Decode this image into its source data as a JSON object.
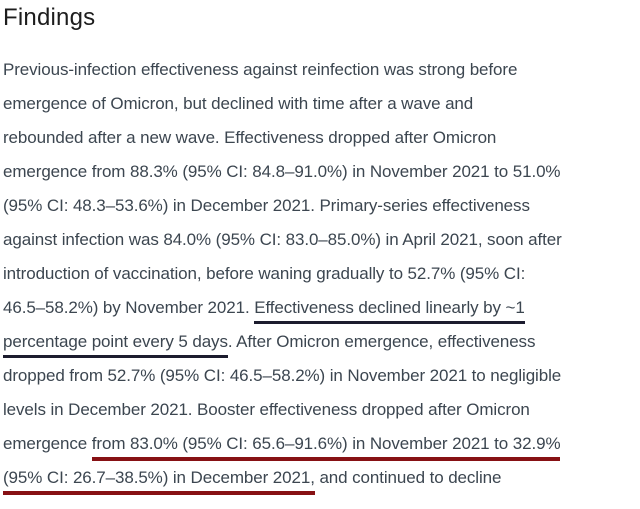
{
  "heading": {
    "text": "Findings"
  },
  "colors": {
    "heading_text": "#1d1d1d",
    "body_text": "#3c4650",
    "navy_underline": "#1c1c2e",
    "red_underline": "#871114",
    "background": "#ffffff"
  },
  "annotations": {
    "navy_underlined_text": "Effectiveness declined linearly by ~1 percentage point every 5 days",
    "red_underlined_text": "from 83.0% (95% CI: 65.6–91.6%) in November 2021 to 32.9% (95% CI: 26.7–38.5%) in December 2021,"
  },
  "paragraph": {
    "lines": [
      {
        "segments": [
          {
            "style": "plain",
            "text": "Previous-infection effectiveness against reinfection was strong before"
          }
        ]
      },
      {
        "segments": [
          {
            "style": "plain",
            "text": "emergence of Omicron, but declined with time after a wave and"
          }
        ]
      },
      {
        "segments": [
          {
            "style": "plain",
            "text": "rebounded after a new wave. Effectiveness dropped after Omicron"
          }
        ]
      },
      {
        "segments": [
          {
            "style": "plain",
            "text": "emergence from 88.3% (95% CI: 84.8–91.0%) in November 2021 to 51.0%"
          }
        ]
      },
      {
        "segments": [
          {
            "style": "plain",
            "text": "(95% CI: 48.3–53.6%) in December 2021. Primary-series effectiveness"
          }
        ]
      },
      {
        "segments": [
          {
            "style": "plain",
            "text": "against infection was 84.0% (95% CI: 83.0–85.0%) in April 2021, soon after"
          }
        ]
      },
      {
        "segments": [
          {
            "style": "plain",
            "text": "introduction of vaccination, before waning gradually to 52.7% (95% CI:"
          }
        ]
      },
      {
        "segments": [
          {
            "style": "plain",
            "text": "46.5–58.2%) by November 2021. "
          },
          {
            "style": "navy",
            "text": "Effectiveness declined linearly by ~1"
          }
        ]
      },
      {
        "segments": [
          {
            "style": "navy",
            "text": "percentage point every 5 days"
          },
          {
            "style": "plain",
            "text": ". After Omicron emergence, effectiveness"
          }
        ]
      },
      {
        "segments": [
          {
            "style": "plain",
            "text": "dropped from 52.7% (95% CI: 46.5–58.2%) in November 2021 to negligible"
          }
        ]
      },
      {
        "segments": [
          {
            "style": "plain",
            "text": "levels in December 2021. Booster effectiveness dropped after Omicron"
          }
        ]
      },
      {
        "segments": [
          {
            "style": "plain",
            "text": "emergence "
          },
          {
            "style": "red",
            "text": "from 83.0% (95% CI: 65.6–91.6%) in November 2021 to 32.9%"
          }
        ]
      },
      {
        "segments": [
          {
            "style": "red",
            "text": "(95% CI: 26.7–38.5%) in December 2021,"
          },
          {
            "style": "plain",
            "text": " and continued to decline"
          }
        ]
      }
    ]
  }
}
